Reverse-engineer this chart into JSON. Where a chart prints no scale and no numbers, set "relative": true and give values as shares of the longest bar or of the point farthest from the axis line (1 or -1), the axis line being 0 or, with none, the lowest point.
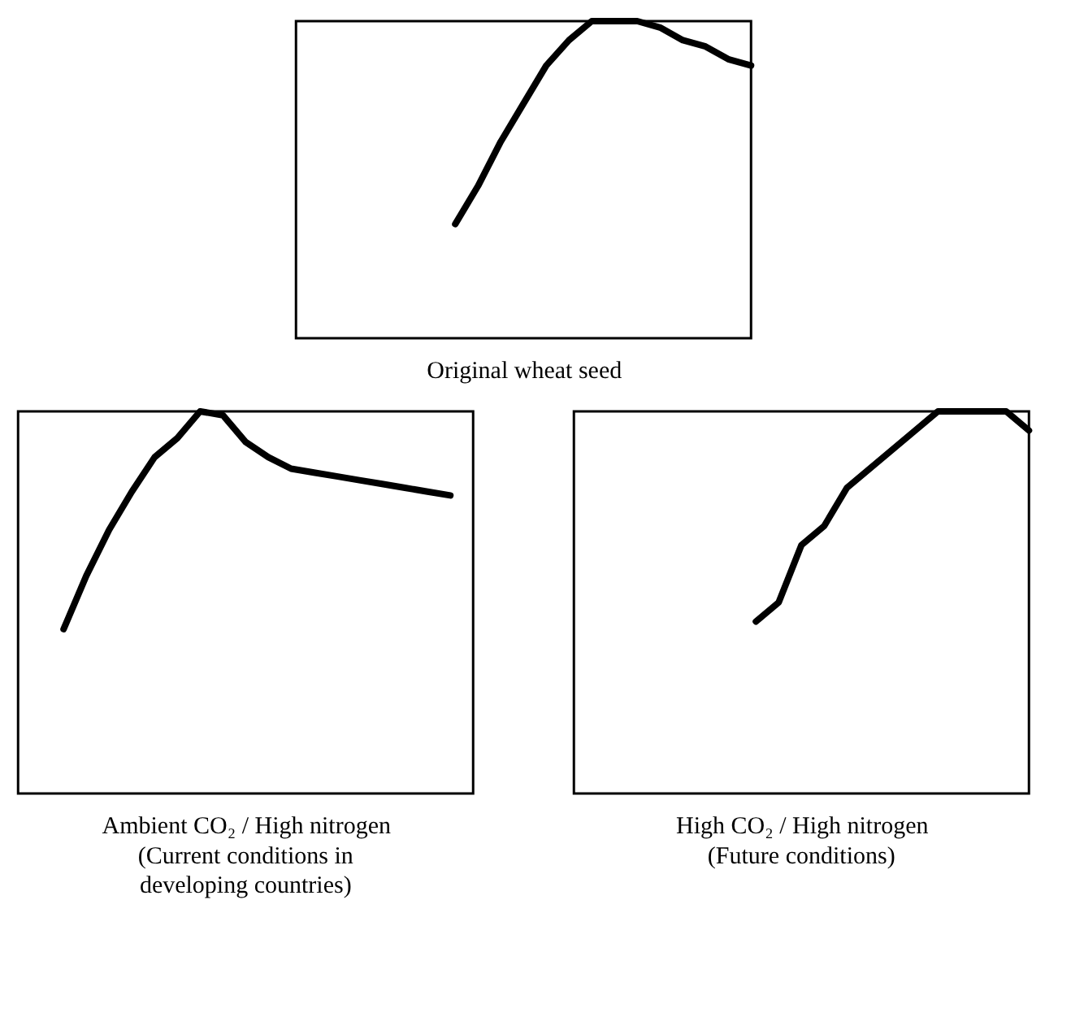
{
  "chart_data": [
    {
      "type": "line",
      "relative": true,
      "xlabel": "Original wheat seed",
      "categories": [
        null,
        null,
        null,
        null,
        null,
        null,
        null,
        null,
        null,
        null,
        null,
        null,
        null,
        null,
        null,
        null,
        null,
        null,
        null,
        null,
        null
      ],
      "series": [
        {
          "color": "#000000",
          "values": [
            null,
            null,
            null,
            null,
            null,
            null,
            null,
            0.36,
            0.48,
            0.62,
            0.74,
            0.86,
            0.94,
            1,
            1,
            1,
            0.98,
            0.94,
            0.92,
            0.88,
            0.86
          ]
        }
      ]
    },
    {
      "type": "line",
      "relative": true,
      "xlabel": "Ambient CO₂ / High nitrogen",
      "annotations": [
        "(Current conditions in developing countries)"
      ],
      "categories": [
        null,
        null,
        null,
        null,
        null,
        null,
        null,
        null,
        null,
        null,
        null,
        null,
        null,
        null,
        null,
        null,
        null,
        null,
        null,
        null,
        null
      ],
      "series": [
        {
          "color": "#000000",
          "values": [
            null,
            null,
            0.43,
            0.57,
            0.69,
            0.79,
            0.88,
            0.93,
            1,
            0.99,
            0.92,
            0.88,
            0.85,
            0.84,
            0.83,
            0.82,
            0.81,
            0.8,
            0.79,
            0.78,
            null
          ]
        }
      ]
    },
    {
      "type": "line",
      "relative": true,
      "xlabel": "High CO₂ / High nitrogen",
      "annotations": [
        "(Future conditions)"
      ],
      "categories": [
        null,
        null,
        null,
        null,
        null,
        null,
        null,
        null,
        null,
        null,
        null,
        null,
        null,
        null,
        null,
        null,
        null,
        null,
        null,
        null,
        null
      ],
      "series": [
        {
          "color": "#000000",
          "values": [
            null,
            null,
            null,
            null,
            null,
            null,
            null,
            null,
            0.45,
            0.5,
            0.65,
            0.7,
            0.8,
            0.85,
            0.9,
            0.95,
            1,
            1,
            1,
            1,
            0.95
          ]
        }
      ]
    }
  ]
}
